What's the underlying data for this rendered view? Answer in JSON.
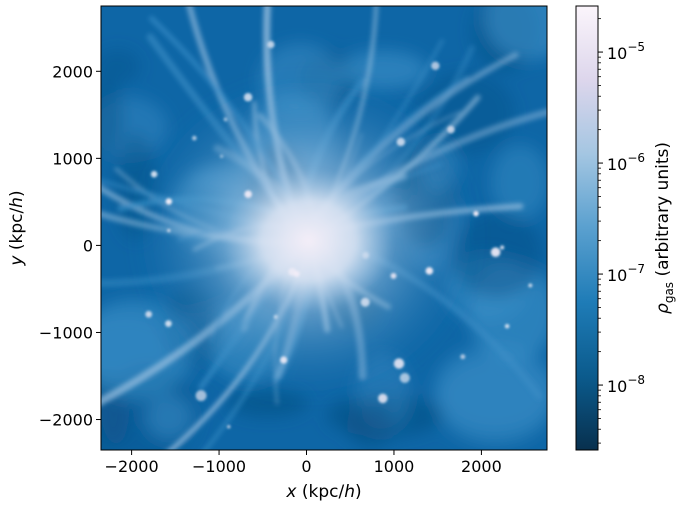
{
  "chart_data": {
    "type": "heatmap",
    "title": "",
    "x_axis": {
      "label_var": "x",
      "label_unit": " (kpc/",
      "label_h": "h",
      "label_close": ")",
      "range": [
        -2350,
        2750
      ],
      "ticks": [
        -2000,
        -1000,
        0,
        1000,
        2000
      ],
      "tick_labels": [
        "−2000",
        "−1000",
        "0",
        "1000",
        "2000"
      ]
    },
    "y_axis": {
      "label_var": "y",
      "label_unit": " (kpc/",
      "label_h": "h",
      "label_close": ")",
      "range": [
        -2350,
        2750
      ],
      "ticks": [
        -2000,
        -1000,
        0,
        1000,
        2000
      ],
      "tick_labels": [
        "−2000",
        "−1000",
        "0",
        "1000",
        "2000"
      ]
    },
    "colorbar": {
      "scale": "log",
      "range": [
        2.6e-09,
        2.6e-05
      ],
      "ticks": [
        1e-08,
        1e-07,
        1e-06,
        1e-05
      ],
      "tick_base": [
        "10",
        "10",
        "10",
        "10"
      ],
      "tick_exp": [
        "−8",
        "−7",
        "−6",
        "−5"
      ],
      "label_symbol": "ρ",
      "label_sub": "gas",
      "label_rest": " (arbitrary units)",
      "colors": [
        "#08304e",
        "#0b5b8d",
        "#1f7cb7",
        "#5aa0cf",
        "#a4c6e2",
        "#ddd6ec",
        "#fbf5fb"
      ]
    },
    "field": {
      "description_free": true,
      "peak_value_center": [
        0,
        100
      ],
      "background_colors": [
        "#0e66a6",
        "#1c78b5",
        "#3c90c8"
      ],
      "core_colors": [
        "#f4eef8",
        "#d9e3f2",
        "#9fc3e2"
      ]
    }
  }
}
